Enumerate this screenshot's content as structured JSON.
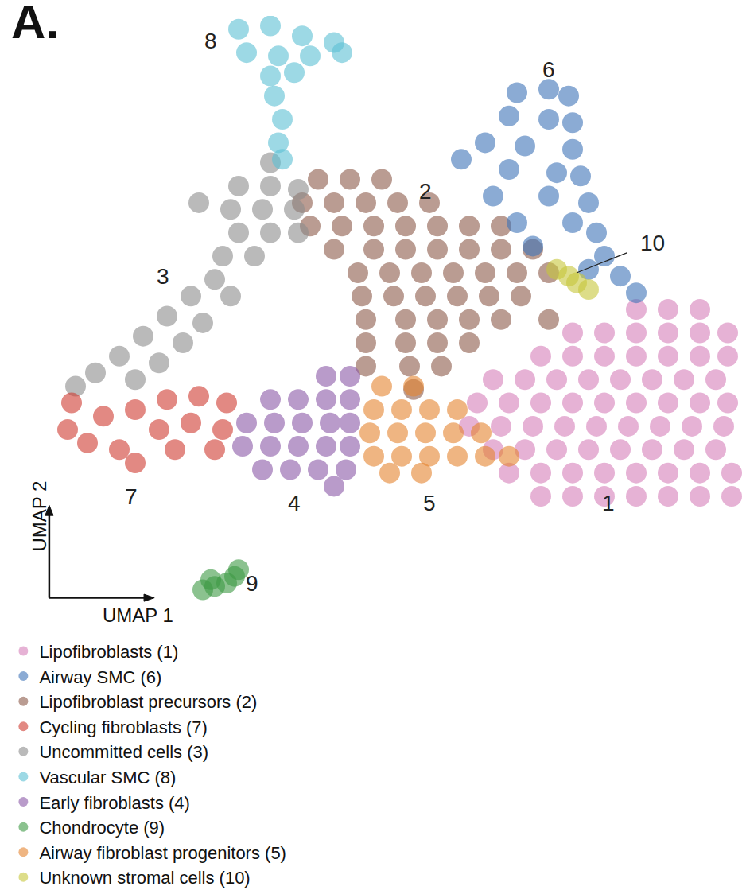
{
  "chart_data": {
    "type": "scatter",
    "title": "A.",
    "x_label": "UMAP 1",
    "y_label": "UMAP 2",
    "xlim": [
      0,
      938
    ],
    "ylim": [
      80,
      980
    ],
    "tick_labels": false,
    "grid": false,
    "legend": "bottom",
    "marker": "circle",
    "series": [
      {
        "name": "Lipofibroblasts (1)",
        "color": "#d57fb9",
        "x": [
          800,
          840,
          880,
          720,
          760,
          800,
          840,
          880,
          915,
          680,
          720,
          760,
          800,
          840,
          880,
          915,
          620,
          660,
          700,
          740,
          780,
          820,
          860,
          900,
          600,
          640,
          680,
          720,
          760,
          800,
          840,
          880,
          915,
          590,
          630,
          670,
          710,
          750,
          790,
          830,
          870,
          910,
          620,
          660,
          700,
          740,
          780,
          820,
          860,
          900,
          640,
          680,
          720,
          760,
          800,
          840,
          880,
          920,
          680,
          720,
          760,
          800,
          840,
          880,
          920
        ],
        "y": [
          540,
          540,
          540,
          505,
          505,
          505,
          505,
          505,
          505,
          470,
          470,
          470,
          470,
          470,
          470,
          470,
          435,
          435,
          435,
          435,
          435,
          435,
          435,
          435,
          400,
          400,
          400,
          400,
          400,
          400,
          400,
          400,
          400,
          365,
          365,
          365,
          365,
          365,
          365,
          365,
          365,
          365,
          330,
          330,
          330,
          330,
          330,
          330,
          330,
          330,
          295,
          295,
          295,
          295,
          295,
          295,
          295,
          295,
          260,
          260,
          260,
          260,
          260,
          260,
          260
        ]
      },
      {
        "name": "Lipofibroblast precursors (2)",
        "color": "#8c5a4a",
        "x": [
          400,
          440,
          480,
          380,
          420,
          460,
          500,
          540,
          390,
          430,
          470,
          510,
          550,
          590,
          630,
          420,
          470,
          510,
          550,
          590,
          630,
          670,
          450,
          490,
          530,
          570,
          610,
          650,
          690,
          455,
          495,
          535,
          575,
          615,
          655,
          460,
          510,
          550,
          590,
          630,
          690,
          460,
          510,
          550,
          590,
          460,
          515,
          555,
          520
        ],
        "y": [
          735,
          735,
          735,
          700,
          700,
          700,
          700,
          700,
          665,
          665,
          665,
          665,
          665,
          665,
          665,
          630,
          630,
          630,
          630,
          630,
          630,
          630,
          595,
          595,
          595,
          595,
          595,
          595,
          595,
          560,
          560,
          560,
          560,
          560,
          560,
          525,
          525,
          525,
          525,
          525,
          525,
          490,
          490,
          490,
          490,
          455,
          455,
          455,
          420
        ]
      },
      {
        "name": "Uncommitted cells (3)",
        "color": "#8c8c8c",
        "x": [
          340,
          300,
          340,
          375,
          250,
          290,
          330,
          370,
          300,
          340,
          375,
          280,
          320,
          270,
          240,
          290,
          210,
          255,
          180,
          230,
          150,
          200,
          120,
          170,
          95
        ],
        "y": [
          760,
          725,
          725,
          720,
          700,
          690,
          690,
          690,
          655,
          655,
          655,
          620,
          620,
          585,
          560,
          560,
          530,
          520,
          500,
          490,
          470,
          460,
          445,
          435,
          425
        ]
      },
      {
        "name": "Early fibroblasts (4)",
        "color": "#8b58a6",
        "x": [
          410,
          440,
          340,
          375,
          410,
          440,
          310,
          345,
          380,
          415,
          440,
          305,
          340,
          375,
          410,
          440,
          330,
          365,
          400,
          435,
          420
        ],
        "y": [
          440,
          440,
          405,
          405,
          405,
          405,
          370,
          370,
          370,
          370,
          370,
          335,
          335,
          335,
          335,
          335,
          300,
          300,
          300,
          300,
          275
        ]
      },
      {
        "name": "Airway fibroblast progenitors (5)",
        "color": "#e5832f",
        "x": [
          480,
          520,
          470,
          505,
          540,
          575,
          465,
          500,
          535,
          570,
          605,
          470,
          505,
          540,
          575,
          610,
          640,
          490,
          530
        ],
        "y": [
          425,
          425,
          390,
          390,
          390,
          390,
          355,
          355,
          355,
          355,
          355,
          320,
          320,
          320,
          320,
          320,
          320,
          295,
          295
        ]
      },
      {
        "name": "Airway SMC (6)",
        "color": "#3e73b8",
        "x": [
          650,
          690,
          715,
          640,
          690,
          720,
          610,
          660,
          720,
          580,
          640,
          700,
          730,
          620,
          690,
          740,
          650,
          720,
          750,
          670,
          760,
          780,
          800,
          740
        ],
        "y": [
          865,
          870,
          860,
          830,
          825,
          820,
          790,
          785,
          780,
          765,
          750,
          745,
          740,
          710,
          710,
          700,
          670,
          670,
          655,
          635,
          620,
          590,
          565,
          600
        ]
      },
      {
        "name": "Cycling fibroblasts (7)",
        "color": "#cf3a30",
        "x": [
          90,
          85,
          110,
          150,
          170,
          130,
          170,
          210,
          250,
          285,
          200,
          240,
          280,
          220,
          270
        ],
        "y": [
          400,
          360,
          340,
          330,
          310,
          380,
          390,
          405,
          410,
          400,
          360,
          370,
          360,
          330,
          330
        ]
      },
      {
        "name": "Vascular SMC (8)",
        "color": "#5bbfd3",
        "x": [
          300,
          340,
          380,
          420,
          310,
          350,
          390,
          430,
          340,
          370,
          345,
          355,
          350,
          355
        ],
        "y": [
          960,
          965,
          950,
          940,
          925,
          920,
          920,
          925,
          890,
          895,
          860,
          825,
          790,
          765
        ]
      },
      {
        "name": "Chondrocyte (9)",
        "color": "#3d9a45",
        "x": [
          255,
          270,
          285,
          295,
          300,
          265
        ],
        "y": [
          120,
          125,
          130,
          140,
          150,
          135
        ]
      },
      {
        "name": "Unknown stromal cells (10)",
        "color": "#c7c63a",
        "x": [
          700,
          715,
          725,
          740
        ],
        "y": [
          600,
          590,
          580,
          570
        ]
      }
    ],
    "annotations": [
      {
        "text": "1",
        "x": 765,
        "y": 250
      },
      {
        "text": "2",
        "x": 535,
        "y": 717
      },
      {
        "text": "3",
        "x": 205,
        "y": 590
      },
      {
        "text": "4",
        "x": 370,
        "y": 250
      },
      {
        "text": "5",
        "x": 540,
        "y": 250
      },
      {
        "text": "6",
        "x": 690,
        "y": 900
      },
      {
        "text": "7",
        "x": 165,
        "y": 260
      },
      {
        "text": "8",
        "x": 265,
        "y": 943
      },
      {
        "text": "9",
        "x": 317,
        "y": 130
      },
      {
        "text": "10",
        "x": 820,
        "y": 640,
        "points_to": [
          725,
          595
        ]
      }
    ]
  }
}
